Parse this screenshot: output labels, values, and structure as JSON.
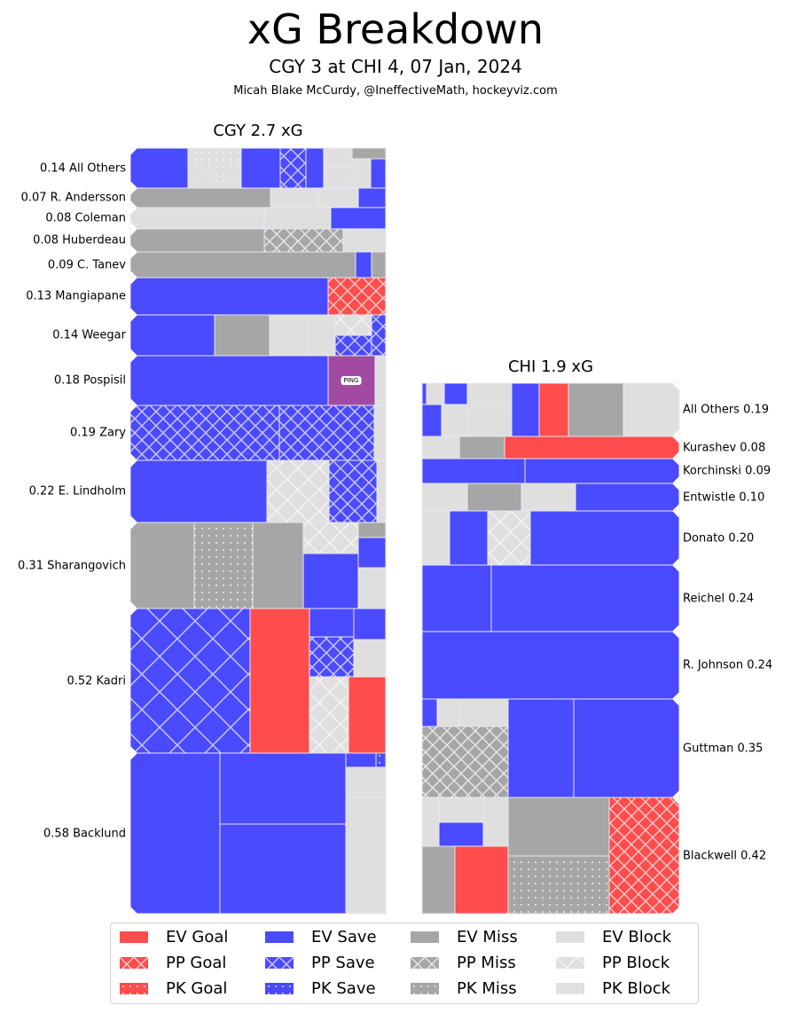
{
  "title": "xG Breakdown",
  "subtitle": "CGY 3 at CHI 4, 07 Jan, 2024",
  "credit": "Micah Blake McCurdy, @IneffectiveMath, hockeyviz.com",
  "colors": {
    "goal": "#ff4c4c",
    "save": "#4a4aff",
    "miss": "#a6a6a6",
    "block": "#dfdfdf",
    "ping": "#a24aa2",
    "hatch": "#e6e6f0"
  },
  "chart_data": {
    "type": "treemap",
    "title": "xG Breakdown",
    "panels": [
      {
        "team": "CGY",
        "title": "CGY 2.7 xG",
        "total_xg": 2.7,
        "label_side": "left",
        "players": [
          {
            "label": "0.14 All Others",
            "name": "All Others",
            "xg": 0.14
          },
          {
            "label": "0.07 R. Andersson",
            "name": "R. Andersson",
            "xg": 0.07
          },
          {
            "label": "0.08 Coleman",
            "name": "Coleman",
            "xg": 0.08
          },
          {
            "label": "0.08 Huberdeau",
            "name": "Huberdeau",
            "xg": 0.08
          },
          {
            "label": "0.09 C. Tanev",
            "name": "C. Tanev",
            "xg": 0.09
          },
          {
            "label": "0.13 Mangiapane",
            "name": "Mangiapane",
            "xg": 0.13
          },
          {
            "label": "0.14 Weegar",
            "name": "Weegar",
            "xg": 0.14
          },
          {
            "label": "0.18 Pospisil",
            "name": "Pospisil",
            "xg": 0.18
          },
          {
            "label": "0.19 Zary",
            "name": "Zary",
            "xg": 0.19
          },
          {
            "label": "0.22 E. Lindholm",
            "name": "E. Lindholm",
            "xg": 0.22
          },
          {
            "label": "0.31 Sharangovich",
            "name": "Sharangovich",
            "xg": 0.31
          },
          {
            "label": "0.52 Kadri",
            "name": "Kadri",
            "xg": 0.52
          },
          {
            "label": "0.58 Backlund",
            "name": "Backlund",
            "xg": 0.58
          }
        ],
        "annotation": "PING"
      },
      {
        "team": "CHI",
        "title": "CHI 1.9 xG",
        "total_xg": 1.9,
        "label_side": "right",
        "players": [
          {
            "label": "All Others 0.19",
            "name": "All Others",
            "xg": 0.19
          },
          {
            "label": "Kurashev 0.08",
            "name": "Kurashev",
            "xg": 0.08
          },
          {
            "label": "Korchinski 0.09",
            "name": "Korchinski",
            "xg": 0.09
          },
          {
            "label": "Entwistle 0.10",
            "name": "Entwistle",
            "xg": 0.1
          },
          {
            "label": "Donato 0.20",
            "name": "Donato",
            "xg": 0.2
          },
          {
            "label": "Reichel 0.24",
            "name": "Reichel",
            "xg": 0.24
          },
          {
            "label": "R. Johnson 0.24",
            "name": "R. Johnson",
            "xg": 0.24
          },
          {
            "label": "Guttman 0.35",
            "name": "Guttman",
            "xg": 0.35
          },
          {
            "label": "Blackwell 0.42",
            "name": "Blackwell",
            "xg": 0.42
          }
        ]
      }
    ],
    "legend": {
      "placement": "bottom",
      "entries": [
        {
          "label": "EV Goal",
          "kind": "goal",
          "strength": "EV"
        },
        {
          "label": "EV Save",
          "kind": "save",
          "strength": "EV"
        },
        {
          "label": "EV Miss",
          "kind": "miss",
          "strength": "EV"
        },
        {
          "label": "EV Block",
          "kind": "block",
          "strength": "EV"
        },
        {
          "label": "PP Goal",
          "kind": "goal",
          "strength": "PP"
        },
        {
          "label": "PP Save",
          "kind": "save",
          "strength": "PP"
        },
        {
          "label": "PP Miss",
          "kind": "miss",
          "strength": "PP"
        },
        {
          "label": "PP Block",
          "kind": "block",
          "strength": "PP"
        },
        {
          "label": "PK Goal",
          "kind": "goal",
          "strength": "PK"
        },
        {
          "label": "PK Save",
          "kind": "save",
          "strength": "PK"
        },
        {
          "label": "PK Miss",
          "kind": "miss",
          "strength": "PK"
        },
        {
          "label": "PK Block",
          "kind": "block",
          "strength": "PK"
        }
      ]
    }
  }
}
